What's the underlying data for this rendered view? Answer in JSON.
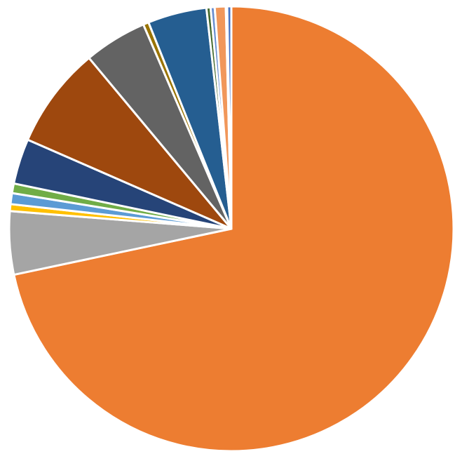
{
  "chart_data": {
    "type": "pie",
    "start": "top",
    "direction": "clockwise",
    "title": "",
    "slices": [
      {
        "value": 71.9,
        "color": "#ED7D31"
      },
      {
        "value": 4.6,
        "color": "#A5A5A5"
      },
      {
        "value": 0.5,
        "color": "#FFC000"
      },
      {
        "value": 0.8,
        "color": "#5B9BD5"
      },
      {
        "value": 0.7,
        "color": "#70AD47"
      },
      {
        "value": 3.3,
        "color": "#264478"
      },
      {
        "value": 7.4,
        "color": "#9E480E"
      },
      {
        "value": 4.6,
        "color": "#636363"
      },
      {
        "value": 0.4,
        "color": "#997300"
      },
      {
        "value": 4.3,
        "color": "#255E91"
      },
      {
        "value": 0.3,
        "color": "#43682B"
      },
      {
        "value": 0.3,
        "color": "#698ED0"
      },
      {
        "value": 0.8,
        "color": "#F1975A"
      },
      {
        "value": 0.1,
        "color": "#B7B7B7"
      },
      {
        "value": 0.3,
        "color": "#4472C4"
      }
    ]
  }
}
